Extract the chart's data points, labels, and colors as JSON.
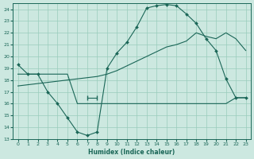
{
  "xlabel": "Humidex (Indice chaleur)",
  "bg_color": "#cce8e0",
  "grid_color": "#99ccbb",
  "line_color": "#1a6657",
  "xlim": [
    -0.5,
    23.5
  ],
  "ylim": [
    13,
    24.5
  ],
  "yticks": [
    13,
    14,
    15,
    16,
    17,
    18,
    19,
    20,
    21,
    22,
    23,
    24
  ],
  "xticks": [
    0,
    1,
    2,
    3,
    4,
    5,
    6,
    7,
    8,
    9,
    10,
    11,
    12,
    13,
    14,
    15,
    16,
    17,
    18,
    19,
    20,
    21,
    22,
    23
  ],
  "curve1_x": [
    0,
    1,
    2,
    3,
    4,
    5,
    6,
    7,
    8,
    9,
    10,
    11,
    12,
    13,
    14,
    15,
    16,
    17,
    18,
    19,
    20,
    21,
    22,
    23
  ],
  "curve1_y": [
    19.3,
    18.5,
    18.5,
    17.0,
    16.0,
    14.8,
    13.6,
    13.3,
    13.6,
    19.0,
    20.3,
    21.2,
    22.5,
    24.1,
    24.3,
    24.4,
    24.3,
    23.6,
    22.8,
    21.5,
    20.5,
    18.1,
    16.5,
    16.5
  ],
  "curve2_x": [
    0,
    1,
    2,
    3,
    4,
    5,
    6,
    7,
    8,
    9,
    10,
    11,
    12,
    13,
    14,
    15,
    16,
    17,
    18,
    19,
    20,
    21,
    22,
    23
  ],
  "curve2_y": [
    18.5,
    18.5,
    18.5,
    18.5,
    18.5,
    18.5,
    16.0,
    16.0,
    16.0,
    16.0,
    16.0,
    16.0,
    16.0,
    16.0,
    16.0,
    16.0,
    16.0,
    16.0,
    16.0,
    16.0,
    16.0,
    16.0,
    16.5,
    16.5
  ],
  "curve3_x": [
    0,
    1,
    2,
    3,
    4,
    5,
    6,
    7,
    8,
    9,
    10,
    11,
    12,
    13,
    14,
    15,
    16,
    17,
    18,
    19,
    20,
    21,
    22,
    23
  ],
  "curve3_y": [
    17.5,
    17.6,
    17.7,
    17.8,
    17.9,
    18.0,
    18.1,
    18.2,
    18.3,
    18.5,
    18.8,
    19.2,
    19.6,
    20.0,
    20.4,
    20.8,
    21.0,
    21.3,
    22.0,
    21.7,
    21.5,
    22.0,
    21.5,
    20.5
  ],
  "errorbar_x": 7.5,
  "errorbar_y": 16.5,
  "errorbar_xerr": 0.5
}
